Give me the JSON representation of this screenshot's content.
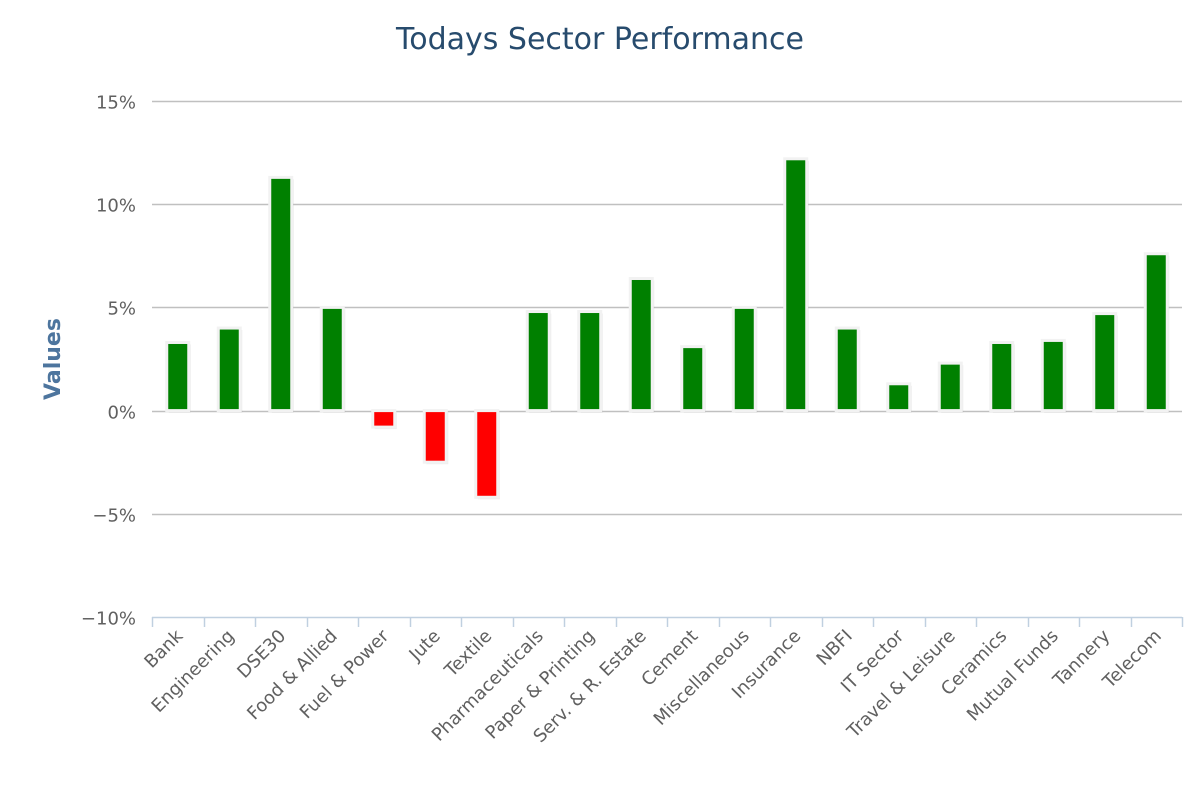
{
  "chart_data": {
    "type": "bar",
    "title": "Todays Sector Performance",
    "xlabel": "",
    "ylabel": "Values",
    "ylim": [
      -10,
      15
    ],
    "yticks": [
      -10,
      -5,
      0,
      5,
      10,
      15
    ],
    "ytick_suffix": "%",
    "grid": true,
    "legend": "none",
    "categories": [
      "Bank",
      "Engineering",
      "DSE30",
      "Food & Allied",
      "Fuel & Power",
      "Jute",
      "Textile",
      "Pharmaceuticals",
      "Paper & Printing",
      "Serv. & R. Estate",
      "Cement",
      "Miscellaneous",
      "Insurance",
      "NBFI",
      "IT Sector",
      "Travel & Leisure",
      "Ceramics",
      "Mutual Funds",
      "Tannery",
      "Telecom"
    ],
    "values": [
      3.3,
      4.0,
      11.3,
      5.0,
      -0.8,
      -2.5,
      -4.2,
      4.8,
      4.8,
      6.4,
      3.1,
      5.0,
      12.2,
      4.0,
      1.3,
      2.3,
      3.3,
      3.4,
      4.7,
      7.6
    ],
    "colors": {
      "positive": "#008000",
      "negative": "#ff0000",
      "grid": "#c0c0c0",
      "axis": "#c0d0e0",
      "title": "#274b6d",
      "axis_title": "#4d759e"
    }
  }
}
